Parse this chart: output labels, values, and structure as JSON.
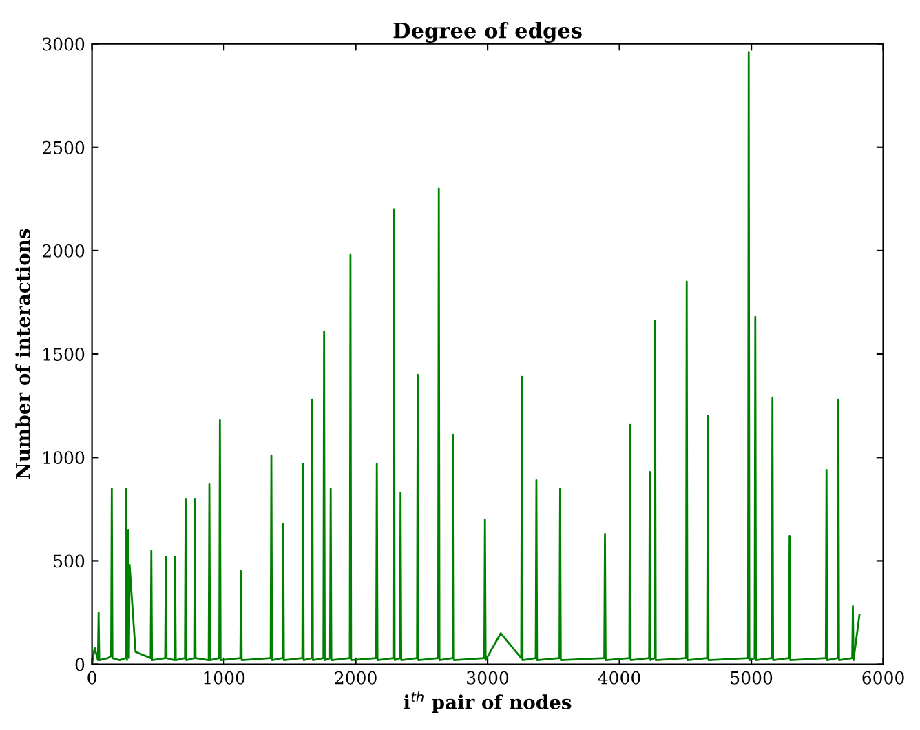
{
  "chart_data": {
    "type": "line",
    "title": "Degree of edges",
    "xlabel": "i$^{th}$ pair of nodes",
    "ylabel": "Number of interactions",
    "x": [
      0,
      20,
      45,
      50,
      55,
      120,
      145,
      150,
      155,
      210,
      255,
      260,
      265,
      275,
      280,
      285,
      330,
      445,
      450,
      455,
      555,
      560,
      565,
      625,
      630,
      635,
      705,
      710,
      715,
      775,
      780,
      785,
      885,
      890,
      895,
      965,
      970,
      975,
      1125,
      1130,
      1135,
      1355,
      1360,
      1365,
      1445,
      1450,
      1455,
      1595,
      1600,
      1605,
      1665,
      1670,
      1675,
      1755,
      1760,
      1765,
      1805,
      1810,
      1815,
      1955,
      1960,
      1965,
      2155,
      2160,
      2165,
      2285,
      2290,
      2295,
      2335,
      2340,
      2345,
      2465,
      2470,
      2475,
      2625,
      2630,
      2635,
      2735,
      2740,
      2745,
      2975,
      2980,
      2985,
      3100,
      3255,
      3260,
      3265,
      3365,
      3370,
      3375,
      3545,
      3550,
      3555,
      3885,
      3890,
      3895,
      4075,
      4080,
      4085,
      4225,
      4230,
      4235,
      4265,
      4270,
      4275,
      4505,
      4510,
      4515,
      4665,
      4670,
      4675,
      4975,
      4980,
      4985,
      5025,
      5030,
      5035,
      5155,
      5160,
      5165,
      5285,
      5290,
      5295,
      5565,
      5570,
      5575,
      5655,
      5660,
      5665,
      5765,
      5770,
      5775,
      5820
    ],
    "values": [
      0,
      80,
      20,
      250,
      20,
      30,
      40,
      850,
      30,
      20,
      30,
      850,
      20,
      650,
      30,
      480,
      60,
      30,
      550,
      20,
      30,
      520,
      30,
      20,
      520,
      20,
      30,
      800,
      20,
      30,
      800,
      30,
      20,
      870,
      20,
      30,
      1180,
      20,
      30,
      450,
      20,
      30,
      1010,
      20,
      30,
      680,
      20,
      30,
      970,
      20,
      30,
      1280,
      20,
      30,
      1610,
      20,
      30,
      850,
      20,
      30,
      1980,
      20,
      30,
      970,
      20,
      30,
      2200,
      20,
      30,
      830,
      20,
      30,
      1400,
      20,
      30,
      2300,
      20,
      30,
      1110,
      20,
      30,
      700,
      20,
      150,
      30,
      1390,
      20,
      30,
      890,
      20,
      30,
      850,
      20,
      30,
      630,
      20,
      30,
      1160,
      20,
      30,
      930,
      20,
      30,
      1660,
      20,
      30,
      1850,
      20,
      30,
      1200,
      20,
      30,
      2960,
      20,
      30,
      1680,
      20,
      30,
      1290,
      20,
      30,
      620,
      20,
      30,
      940,
      20,
      30,
      1280,
      20,
      30,
      280,
      20,
      240
    ],
    "color": "#008000",
    "xlim": [
      0,
      6000
    ],
    "ylim": [
      0,
      3000
    ],
    "xticks": [
      0,
      1000,
      2000,
      3000,
      4000,
      5000,
      6000
    ],
    "yticks": [
      0,
      500,
      1000,
      1500,
      2000,
      2500,
      3000
    ],
    "grid": false,
    "legend": false
  }
}
